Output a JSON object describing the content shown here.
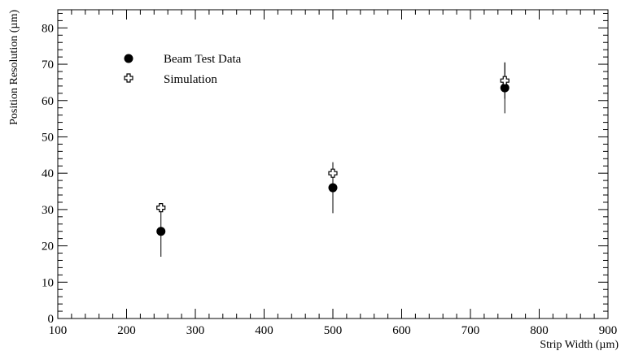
{
  "chart_data": {
    "type": "scatter",
    "xlabel": "Strip Width (µm)",
    "ylabel": "Position Resolution (µm)",
    "xlim": [
      100,
      900
    ],
    "ylim": [
      0,
      85
    ],
    "x_ticks": [
      100,
      200,
      300,
      400,
      500,
      600,
      700,
      800,
      900
    ],
    "y_ticks": [
      0,
      10,
      20,
      30,
      40,
      50,
      60,
      70,
      80
    ],
    "grid": false,
    "legend_position": "top-left",
    "series": [
      {
        "name": "Beam Test Data",
        "marker": "filled-circle",
        "points": [
          {
            "x": 250,
            "y": 24,
            "err": 7
          },
          {
            "x": 500,
            "y": 36,
            "err": 7
          },
          {
            "x": 750,
            "y": 63.5,
            "err": 7
          }
        ]
      },
      {
        "name": "Simulation",
        "marker": "open-cross",
        "points": [
          {
            "x": 250,
            "y": 30.5,
            "err": 0
          },
          {
            "x": 500,
            "y": 40,
            "err": 3
          },
          {
            "x": 750,
            "y": 65.5,
            "err": 5
          }
        ]
      }
    ]
  }
}
